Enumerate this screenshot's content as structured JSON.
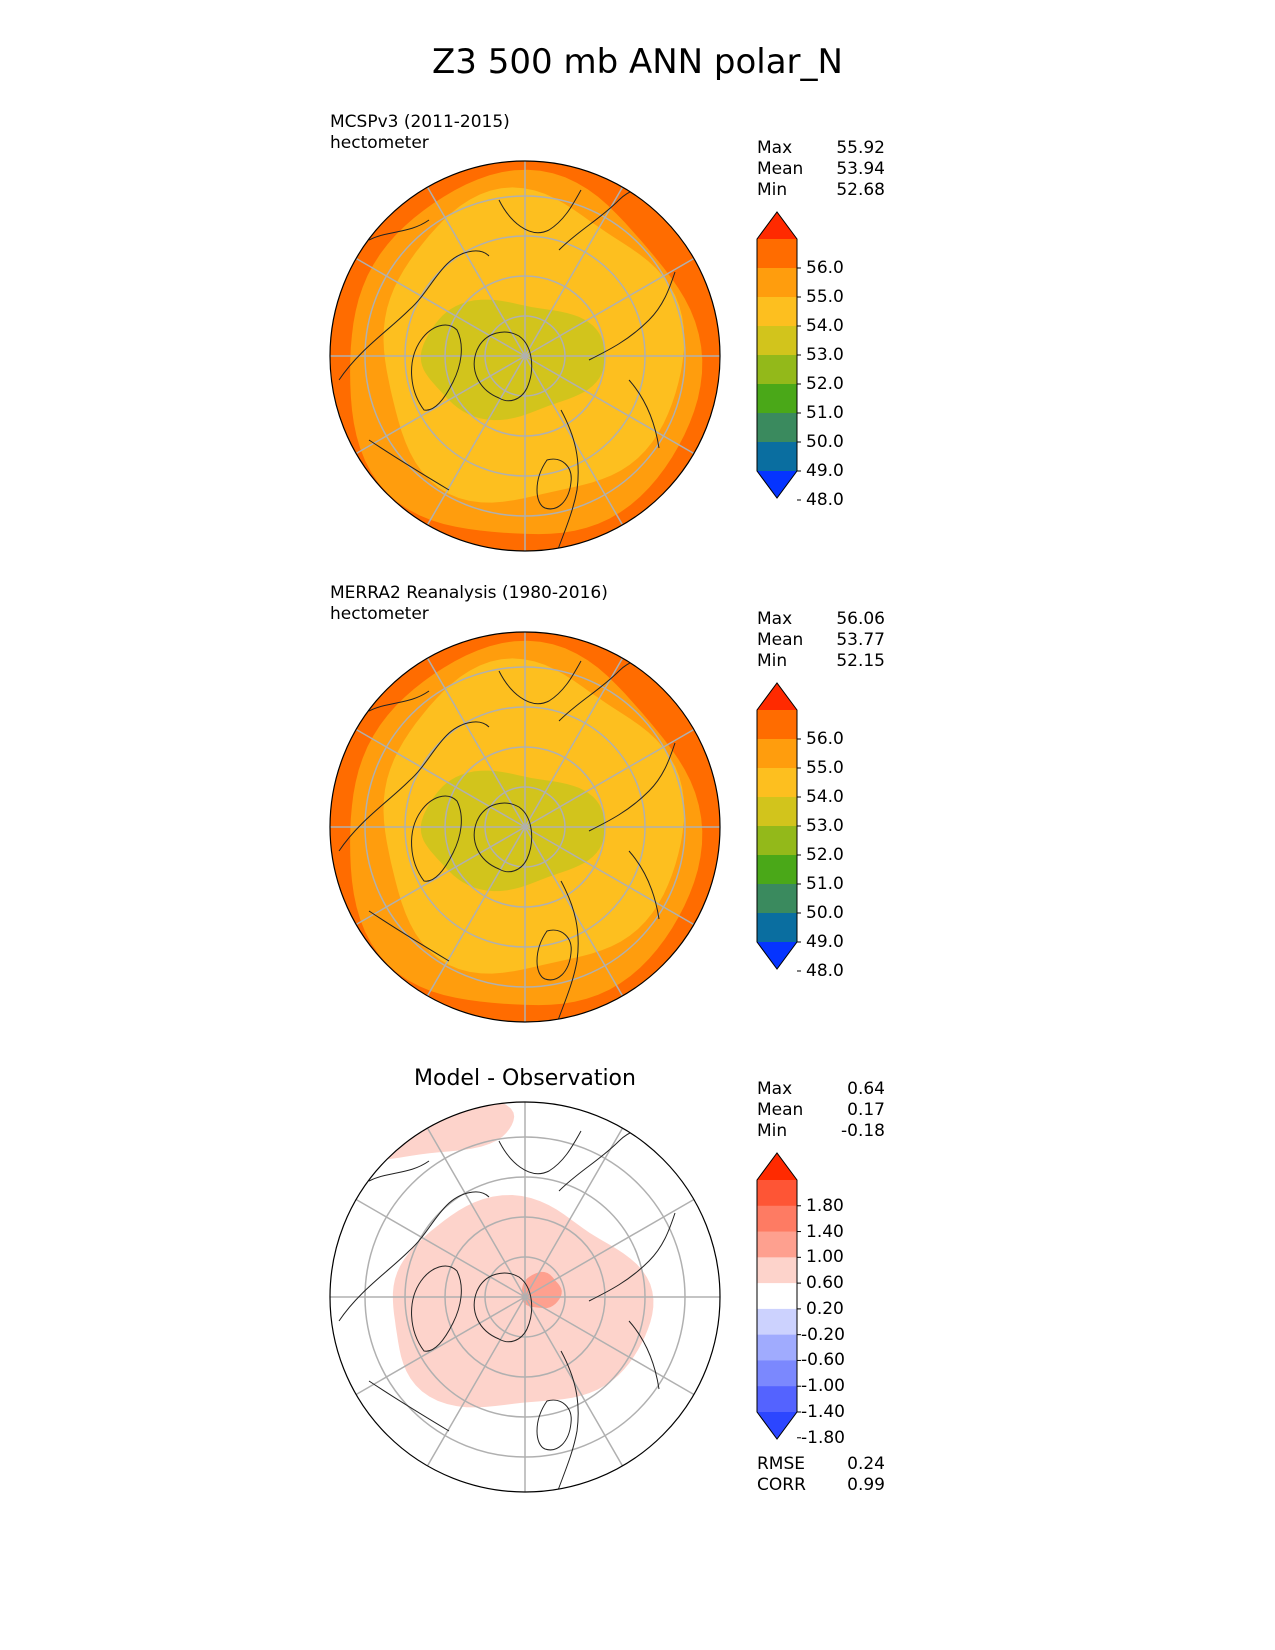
{
  "title": "Z3 500 mb ANN polar_N",
  "chart_data": [
    {
      "type": "heatmap",
      "projection": "north-polar-stereographic",
      "name_line": "MCSPv3 (2011-2015)",
      "units_line": "hectometer",
      "stats": [
        {
          "label": "Max",
          "value": "55.92"
        },
        {
          "label": "Mean",
          "value": "53.94"
        },
        {
          "label": "Min",
          "value": "52.68"
        }
      ],
      "colorbar": {
        "ticks": [
          "56.0",
          "55.0",
          "54.0",
          "53.0",
          "52.0",
          "51.0",
          "50.0",
          "49.0",
          "48.0"
        ],
        "colors": [
          "#ff2a00",
          "#ff6c00",
          "#ff9d0d",
          "#fdbf1f",
          "#d2c41c",
          "#93b91a",
          "#4aa818",
          "#3a8a5e",
          "#0a6ea0",
          "#0534ff"
        ],
        "extend": "both"
      },
      "field_levels": {
        "outer": 55.4,
        "middle": 54.5,
        "inner": 53.6,
        "core": 52.6
      }
    },
    {
      "type": "heatmap",
      "projection": "north-polar-stereographic",
      "name_line": "MERRA2 Reanalysis (1980-2016)",
      "units_line": "hectometer",
      "stats": [
        {
          "label": "Max",
          "value": "56.06"
        },
        {
          "label": "Mean",
          "value": "53.77"
        },
        {
          "label": "Min",
          "value": "52.15"
        }
      ],
      "colorbar": {
        "ticks": [
          "56.0",
          "55.0",
          "54.0",
          "53.0",
          "52.0",
          "51.0",
          "50.0",
          "49.0",
          "48.0"
        ],
        "colors": [
          "#ff2a00",
          "#ff6c00",
          "#ff9d0d",
          "#fdbf1f",
          "#d2c41c",
          "#93b91a",
          "#4aa818",
          "#3a8a5e",
          "#0a6ea0",
          "#0534ff"
        ],
        "extend": "both"
      },
      "field_levels": {
        "outer": 55.4,
        "middle": 54.5,
        "inner": 53.6,
        "core": 52.5
      }
    },
    {
      "type": "heatmap",
      "projection": "north-polar-stereographic",
      "title": "Model - Observation",
      "stats": [
        {
          "label": "Max",
          "value": "0.64"
        },
        {
          "label": "Mean",
          "value": "0.17"
        },
        {
          "label": "Min",
          "value": "-0.18"
        }
      ],
      "colorbar": {
        "ticks": [
          "1.80",
          "1.40",
          "1.00",
          "0.60",
          "0.20",
          "-0.20",
          "-0.60",
          "-1.00",
          "-1.40",
          "-1.80"
        ],
        "colors": [
          "#ff2a00",
          "#fe5535",
          "#fe7b63",
          "#fea08f",
          "#fdd3cb",
          "#ffffff",
          "#ccd2fe",
          "#a0abfe",
          "#7b88fe",
          "#5463ff",
          "#2c46ff"
        ],
        "extend": "both"
      },
      "extra_stats": [
        {
          "label": "RMSE",
          "value": "0.24"
        },
        {
          "label": "CORR",
          "value": "0.99"
        }
      ]
    }
  ]
}
